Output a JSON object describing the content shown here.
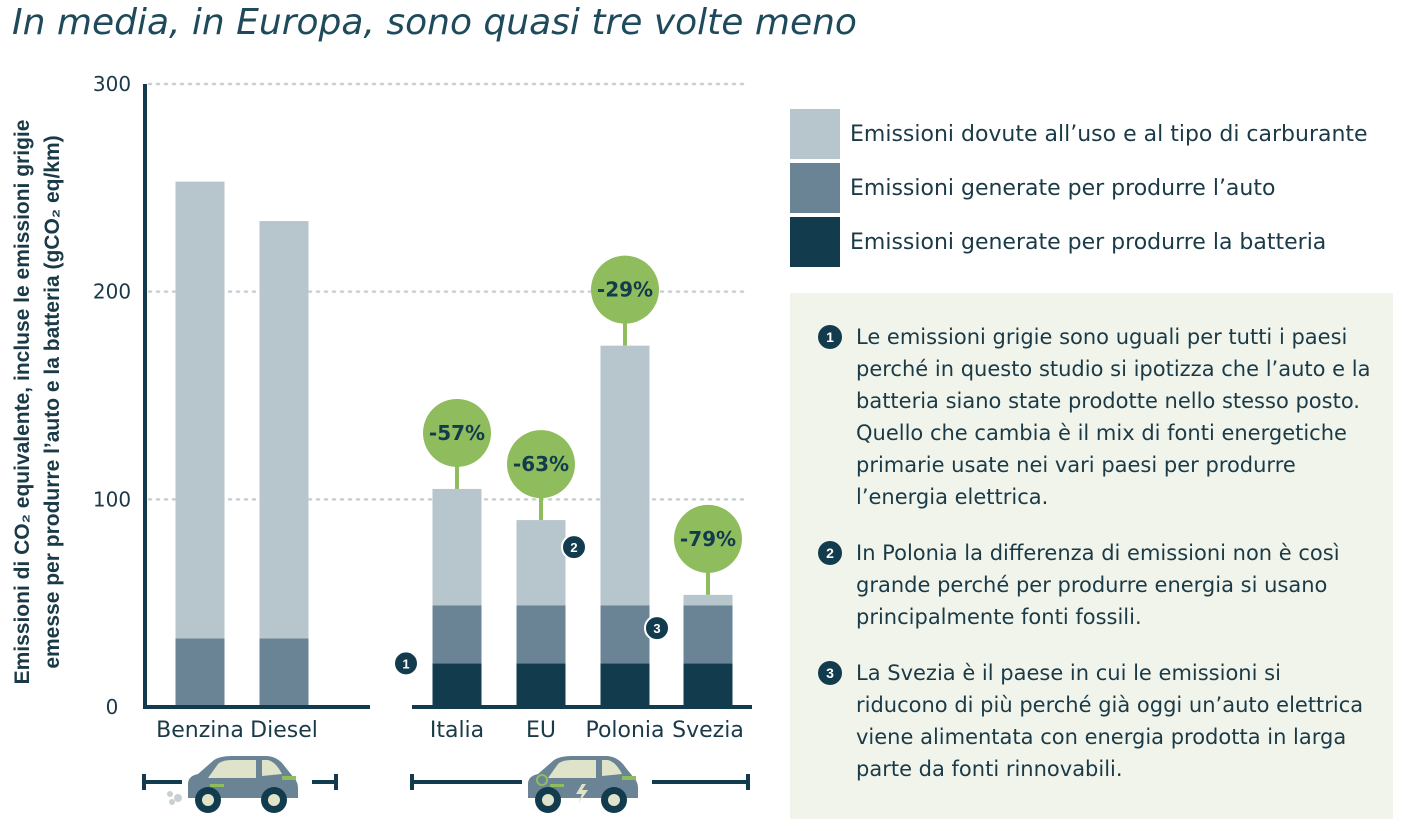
{
  "title": "In media, in Europa, sono quasi tre volte meno",
  "colors": {
    "use": "#b7c5cd",
    "car": "#6a8496",
    "battery": "#123c4d",
    "badge": "#8fbc5c",
    "note_bg": "#f1f4ea"
  },
  "chart_data": {
    "type": "bar",
    "stacked": true,
    "categories": [
      "Benzina",
      "Diesel",
      "Italia",
      "EU",
      "Polonia",
      "Svezia"
    ],
    "ylabel_lines": [
      "Emissioni di CO₂ equivalente, incluse le emissioni grigie",
      "emesse per produrre l’auto e la batteria (gCO₂ eq/km)"
    ],
    "ylim": [
      0,
      300
    ],
    "yticks": [
      0,
      100,
      200,
      300
    ],
    "grid": true,
    "series": [
      {
        "name": "Emissioni generate per produrre la batteria",
        "color": "#123c4d",
        "values": [
          0,
          0,
          21,
          21,
          21,
          21
        ]
      },
      {
        "name": "Emissioni generate per produrre l’auto",
        "color": "#6a8496",
        "values": [
          33,
          33,
          28,
          28,
          28,
          28
        ]
      },
      {
        "name": "Emissioni dovute all’uso e al tipo di carburante",
        "color": "#b7c5cd",
        "values": [
          220,
          201,
          56,
          41,
          125,
          5
        ]
      }
    ],
    "totals": [
      253,
      234,
      105,
      90,
      174,
      54
    ],
    "badges": [
      {
        "category": "Italia",
        "label": "-57%"
      },
      {
        "category": "EU",
        "label": "-63%"
      },
      {
        "category": "Polonia",
        "label": "-29%"
      },
      {
        "category": "Svezia",
        "label": "-79%"
      }
    ],
    "markers": [
      {
        "label": "1",
        "category": "Italia",
        "value": 21
      },
      {
        "label": "2",
        "category": "Polonia",
        "value": 77
      },
      {
        "label": "3",
        "category": "Svezia",
        "value": 38
      }
    ],
    "groups": [
      {
        "name": "combustion",
        "categories": [
          "Benzina",
          "Diesel"
        ],
        "icon": "petrol-car-icon"
      },
      {
        "name": "electric",
        "categories": [
          "Italia",
          "EU",
          "Polonia",
          "Svezia"
        ],
        "icon": "electric-car-icon"
      }
    ]
  },
  "legend": [
    {
      "label": "Emissioni dovute all’uso e al tipo di carburante",
      "color": "#b7c5cd"
    },
    {
      "label": "Emissioni generate per produrre l’auto",
      "color": "#6a8496"
    },
    {
      "label": "Emissioni generate per produrre la batteria",
      "color": "#123c4d"
    }
  ],
  "notes": [
    {
      "num": "1",
      "text": "Le emissioni grigie sono uguali per tutti i paesi perché in questo studio si ipotizza che l’auto e la batteria siano state prodotte nello stesso posto. Quello che cambia è il mix di fonti energetiche primarie usate nei vari paesi per produrre l’energia elettrica."
    },
    {
      "num": "2",
      "text": "In Polonia la differenza di emissioni non è così grande perché per produrre energia si usano principalmente fonti fossili."
    },
    {
      "num": "3",
      "text": "La Svezia è il paese in cui le emissioni si riducono di più perché già oggi un’auto elettrica viene alimentata con energia prodotta in larga parte da fonti rinnovabili."
    }
  ]
}
